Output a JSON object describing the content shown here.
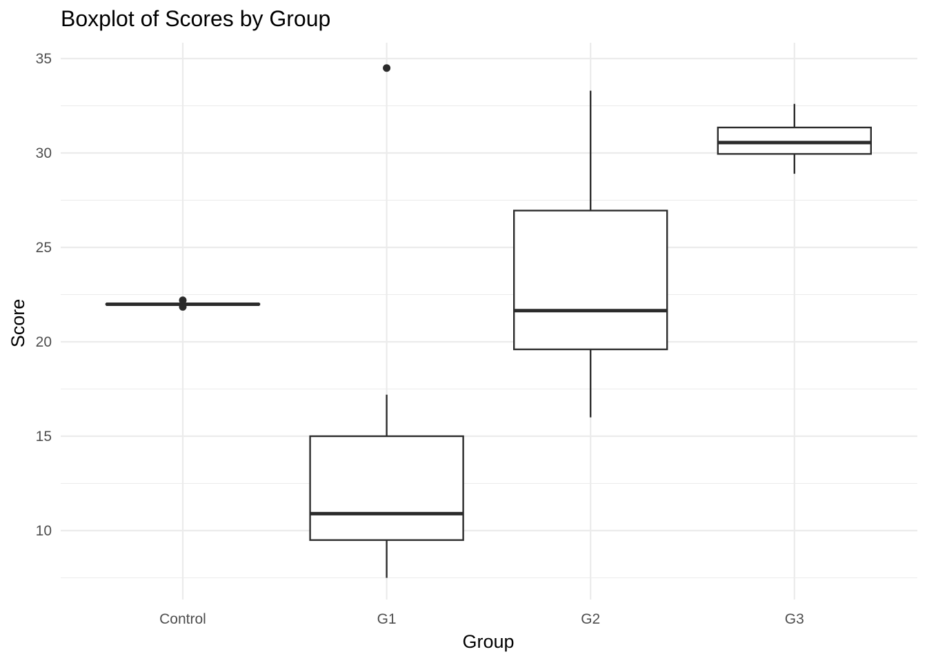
{
  "chart_data": {
    "type": "boxplot",
    "title": "Boxplot of Scores by Group",
    "xlabel": "Group",
    "ylabel": "Score",
    "ylim": [
      6.3,
      35.8
    ],
    "yticks": [
      10,
      15,
      20,
      25,
      30,
      35
    ],
    "y_minor_ticks": [
      7.5,
      12.5,
      17.5,
      22.5,
      27.5,
      32.5
    ],
    "grid": true,
    "categories": [
      "Control",
      "G1",
      "G2",
      "G3"
    ],
    "boxes": [
      {
        "category": "Control",
        "whisker_low": 21.97,
        "q1": 21.97,
        "median": 21.99,
        "q3": 22.01,
        "whisker_high": 22.01,
        "outliers": [
          21.85,
          22.2
        ]
      },
      {
        "category": "G1",
        "whisker_low": 7.5,
        "q1": 9.5,
        "median": 10.9,
        "q3": 15.0,
        "whisker_high": 17.2,
        "outliers": [
          34.5
        ]
      },
      {
        "category": "G2",
        "whisker_low": 16.0,
        "q1": 19.6,
        "median": 21.65,
        "q3": 26.95,
        "whisker_high": 33.3,
        "outliers": []
      },
      {
        "category": "G3",
        "whisker_low": 28.9,
        "q1": 29.95,
        "median": 30.55,
        "q3": 31.35,
        "whisker_high": 32.6,
        "outliers": []
      }
    ],
    "colors": {
      "box_line": "#2b2b2b",
      "box_fill": "#ffffff",
      "grid": "#ebebeb"
    }
  }
}
